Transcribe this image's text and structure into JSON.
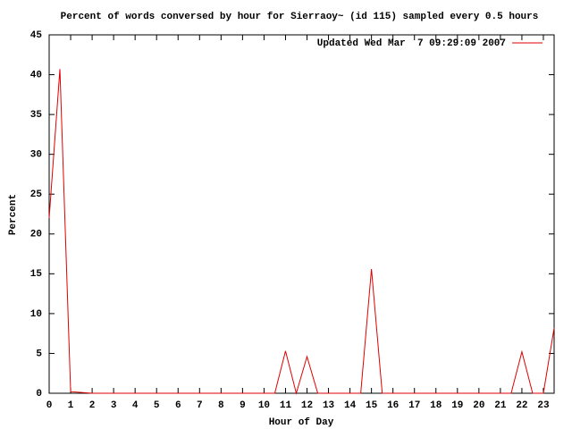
{
  "chart_data": {
    "type": "line",
    "title": "Percent of words conversed by hour for Sierraoy~ (id 115) sampled every 0.5 hours",
    "x_label": "Hour of Day",
    "y_label": "Percent",
    "x": [
      0,
      0.5,
      1,
      1.5,
      2,
      2.5,
      3,
      3.5,
      4,
      4.5,
      5,
      5.5,
      6,
      6.5,
      7,
      7.5,
      8,
      8.5,
      9,
      9.5,
      10,
      10.5,
      11,
      11.5,
      12,
      12.5,
      13,
      13.5,
      14,
      14.5,
      15,
      15.5,
      16,
      16.5,
      17,
      17.5,
      18,
      18.5,
      19,
      19.5,
      20,
      20.5,
      21,
      21.5,
      22,
      22.5,
      23,
      23.5
    ],
    "series": [
      {
        "name": "Updated Wed Mar  7 09:29:09 2007",
        "color": "#e00000",
        "values": [
          22,
          40.7,
          0.2,
          0.1,
          0,
          0,
          0,
          0,
          0,
          0,
          0,
          0,
          0,
          0,
          0,
          0,
          0,
          0,
          0,
          0,
          0,
          0,
          5.3,
          0,
          4.6,
          0,
          0,
          0,
          0,
          0,
          15.6,
          0,
          0,
          0,
          0,
          0,
          0,
          0,
          0,
          0,
          0,
          0,
          0,
          0,
          5.2,
          0,
          0,
          8.2
        ]
      }
    ],
    "xlim": [
      0,
      23.5
    ],
    "ylim": [
      0,
      45
    ],
    "xticks": [
      0,
      1,
      2,
      3,
      4,
      5,
      6,
      7,
      8,
      9,
      10,
      11,
      12,
      13,
      14,
      15,
      16,
      17,
      18,
      19,
      20,
      21,
      22,
      23
    ],
    "yticks": [
      0,
      5,
      10,
      15,
      20,
      25,
      30,
      35,
      40,
      45
    ],
    "legend": "top-right",
    "grid": false
  }
}
